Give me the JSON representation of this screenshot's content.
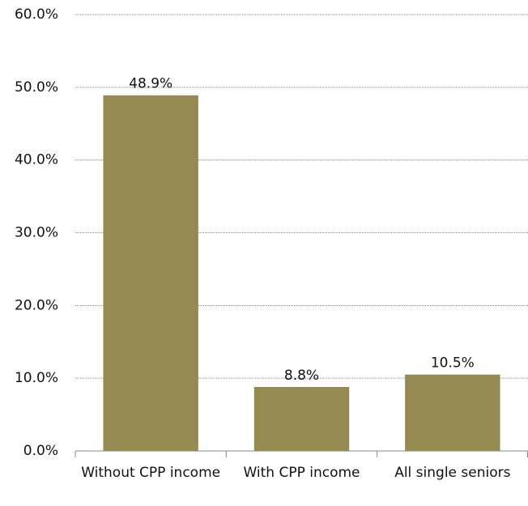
{
  "chart_data": {
    "type": "bar",
    "categories": [
      "Without CPP income",
      "With CPP income",
      "All single seniors"
    ],
    "values": [
      48.9,
      8.8,
      10.5
    ],
    "value_labels": [
      "48.9%",
      "8.8%",
      "10.5%"
    ],
    "color": "#958a52",
    "ylim": [
      0,
      60
    ],
    "yticks": [
      {
        "value": 0,
        "label": "0.0%"
      },
      {
        "value": 10,
        "label": "10.0%"
      },
      {
        "value": 20,
        "label": "20.0%"
      },
      {
        "value": 30,
        "label": "30.0%"
      },
      {
        "value": 40,
        "label": "40.0%"
      },
      {
        "value": 50,
        "label": "50.0%"
      },
      {
        "value": 60,
        "label": "60.0%"
      }
    ],
    "grid": true
  }
}
